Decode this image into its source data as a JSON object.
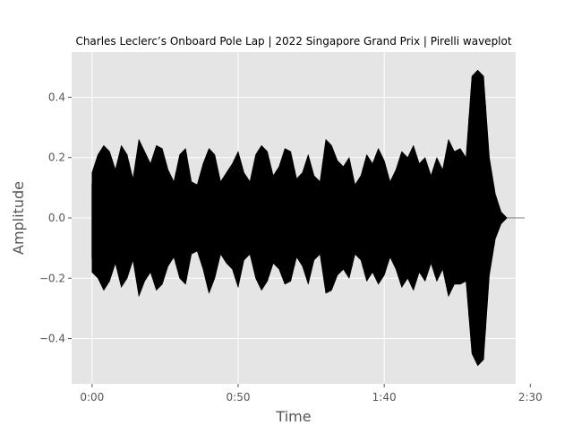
{
  "chart_data": {
    "type": "area",
    "title": "Charles Leclerc’s Onboard Pole Lap | 2022 Singapore Grand Prix | Pirelli waveplot",
    "xlabel": "Time",
    "ylabel": "Amplitude",
    "x_unit": "seconds",
    "xlim": [
      -7,
      145
    ],
    "ylim": [
      -0.55,
      0.55
    ],
    "x_ticks": [
      {
        "value": 0,
        "label": "0:00"
      },
      {
        "value": 50,
        "label": "0:50"
      },
      {
        "value": 100,
        "label": "1:40"
      },
      {
        "value": 150,
        "label": "2:30"
      }
    ],
    "y_ticks": [
      {
        "value": -0.4,
        "label": "−0.4"
      },
      {
        "value": -0.2,
        "label": "−0.2"
      },
      {
        "value": 0.0,
        "label": "0.0"
      },
      {
        "value": 0.2,
        "label": "0.2"
      },
      {
        "value": 0.4,
        "label": "0.4"
      }
    ],
    "grid": true,
    "style": "ggplot",
    "colors": {
      "plot_bg": "#e5e5e5",
      "grid": "#ffffff",
      "wave": "#000000",
      "text": "#555555"
    },
    "series": [
      {
        "x": [
          0,
          2,
          4,
          6,
          8,
          10,
          12,
          14,
          16,
          18,
          20,
          22,
          24,
          26,
          28,
          30,
          32,
          34,
          36,
          38,
          40,
          42,
          44,
          46,
          48,
          50,
          52,
          54,
          56,
          58,
          60,
          62,
          64,
          66,
          68,
          70,
          72,
          74,
          76,
          78,
          80,
          82,
          84,
          86,
          88,
          90,
          92,
          94,
          96,
          98,
          100,
          102,
          104,
          106,
          108,
          110,
          112,
          114,
          116,
          118,
          120,
          122,
          124,
          126,
          128,
          130,
          132,
          134,
          136,
          138,
          140,
          142,
          144,
          146,
          148
        ],
        "upper": [
          0.15,
          0.21,
          0.24,
          0.22,
          0.16,
          0.24,
          0.21,
          0.13,
          0.26,
          0.22,
          0.18,
          0.24,
          0.23,
          0.16,
          0.12,
          0.21,
          0.23,
          0.12,
          0.11,
          0.18,
          0.23,
          0.21,
          0.12,
          0.15,
          0.18,
          0.22,
          0.15,
          0.12,
          0.21,
          0.24,
          0.22,
          0.14,
          0.17,
          0.23,
          0.22,
          0.13,
          0.15,
          0.21,
          0.14,
          0.12,
          0.26,
          0.24,
          0.19,
          0.17,
          0.2,
          0.11,
          0.14,
          0.21,
          0.18,
          0.23,
          0.19,
          0.12,
          0.16,
          0.22,
          0.2,
          0.24,
          0.18,
          0.2,
          0.14,
          0.2,
          0.16,
          0.26,
          0.22,
          0.23,
          0.2,
          0.47,
          0.49,
          0.47,
          0.2,
          0.08,
          0.02,
          0.0,
          0.0,
          0.0,
          0.0
        ],
        "lower": [
          -0.18,
          -0.2,
          -0.24,
          -0.21,
          -0.15,
          -0.23,
          -0.2,
          -0.14,
          -0.26,
          -0.21,
          -0.18,
          -0.24,
          -0.22,
          -0.16,
          -0.13,
          -0.2,
          -0.22,
          -0.12,
          -0.11,
          -0.17,
          -0.25,
          -0.2,
          -0.12,
          -0.15,
          -0.17,
          -0.23,
          -0.14,
          -0.12,
          -0.2,
          -0.24,
          -0.21,
          -0.15,
          -0.17,
          -0.22,
          -0.21,
          -0.13,
          -0.16,
          -0.22,
          -0.14,
          -0.12,
          -0.25,
          -0.24,
          -0.19,
          -0.17,
          -0.2,
          -0.12,
          -0.14,
          -0.21,
          -0.18,
          -0.22,
          -0.19,
          -0.13,
          -0.17,
          -0.23,
          -0.2,
          -0.24,
          -0.18,
          -0.21,
          -0.15,
          -0.21,
          -0.17,
          -0.26,
          -0.22,
          -0.22,
          -0.21,
          -0.45,
          -0.49,
          -0.47,
          -0.19,
          -0.07,
          -0.02,
          0.0,
          0.0,
          0.0,
          0.0
        ]
      }
    ]
  }
}
